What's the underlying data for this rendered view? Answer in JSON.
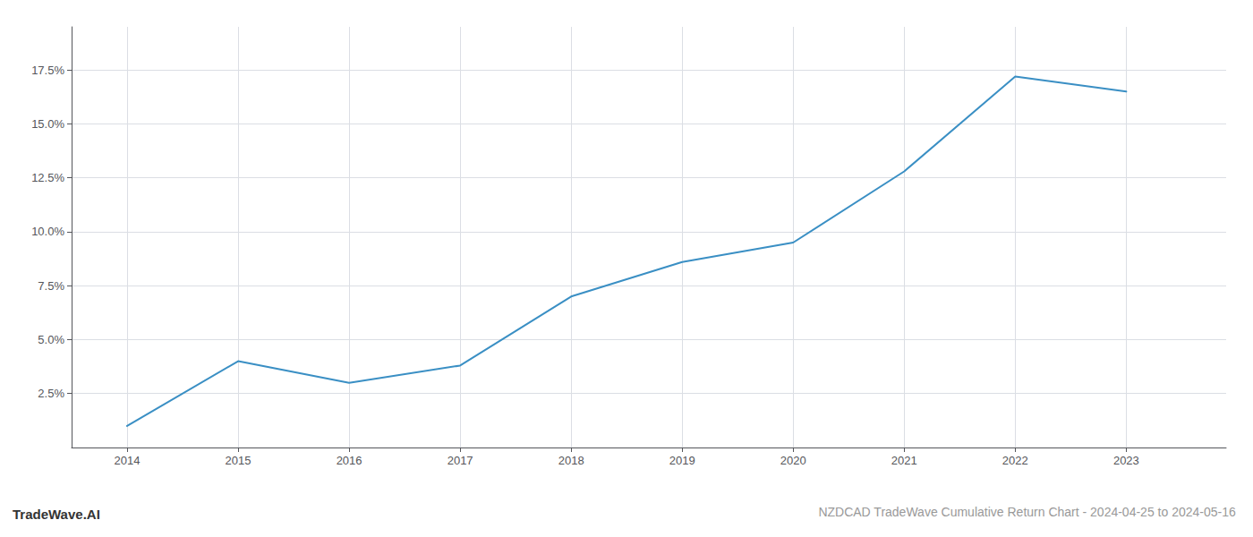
{
  "chart_data": {
    "type": "line",
    "title": "NZDCAD TradeWave Cumulative Return Chart - 2024-04-25 to 2024-05-16",
    "annotations": [
      "TradeWave.AI"
    ],
    "x": [
      2014,
      2015,
      2016,
      2017,
      2018,
      2019,
      2020,
      2021,
      2022,
      2023
    ],
    "values": [
      1.0,
      4.0,
      3.0,
      3.8,
      7.0,
      8.6,
      9.5,
      12.8,
      17.2,
      16.5
    ],
    "color": "#3a8fc4",
    "xlim": [
      2013.5,
      2023.9
    ],
    "xticks": [
      2014,
      2015,
      2016,
      2017,
      2018,
      2019,
      2020,
      2021,
      2022,
      2023
    ],
    "ylim": [
      0.0,
      19.5
    ],
    "yticks": [
      {
        "value": 2.5,
        "label": "2.5%"
      },
      {
        "value": 5.0,
        "label": "5.0%"
      },
      {
        "value": 7.5,
        "label": "7.5%"
      },
      {
        "value": 10.0,
        "label": "10.0%"
      },
      {
        "value": 12.5,
        "label": "12.5%"
      },
      {
        "value": 15.0,
        "label": "15.0%"
      },
      {
        "value": 17.5,
        "label": "17.5%"
      }
    ],
    "grid": true
  }
}
